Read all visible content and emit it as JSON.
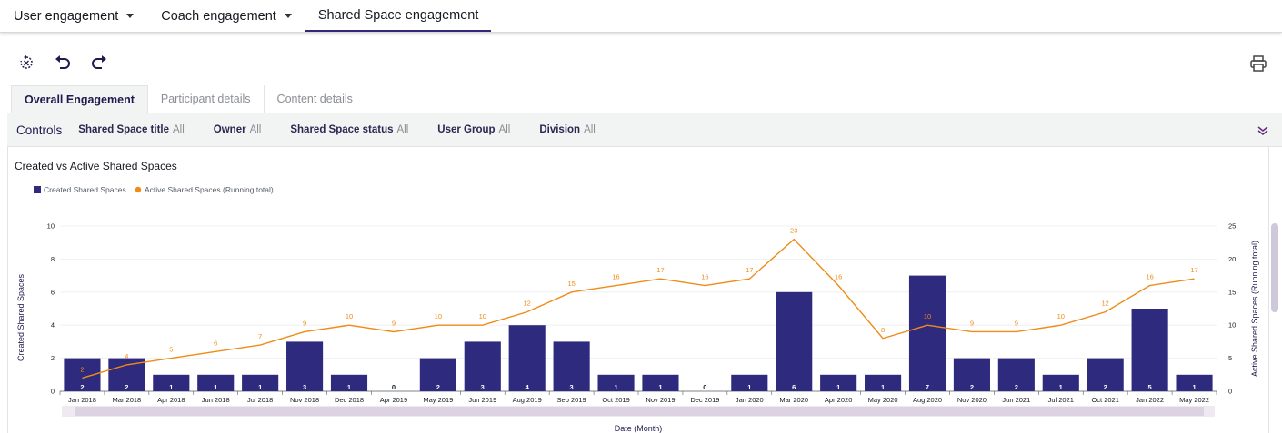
{
  "topnav": {
    "tabs": [
      {
        "label": "User engagement",
        "dropdown": true,
        "active": false
      },
      {
        "label": "Coach engagement",
        "dropdown": true,
        "active": false
      },
      {
        "label": "Shared Space engagement",
        "dropdown": false,
        "active": true
      }
    ]
  },
  "toolbar": {
    "icons": [
      "reset-icon",
      "undo-icon",
      "redo-icon",
      "print-icon"
    ]
  },
  "subtabs": [
    {
      "label": "Overall Engagement",
      "active": true
    },
    {
      "label": "Participant details",
      "active": false
    },
    {
      "label": "Content details",
      "active": false
    }
  ],
  "controls": {
    "title": "Controls",
    "filters": [
      {
        "name": "Shared Space title",
        "value": "All"
      },
      {
        "name": "Owner",
        "value": "All"
      },
      {
        "name": "Shared Space status",
        "value": "All"
      },
      {
        "name": "User Group",
        "value": "All"
      },
      {
        "name": "Division",
        "value": "All"
      }
    ]
  },
  "chart_data": {
    "type": "bar",
    "title": "Created vs Active Shared Spaces",
    "categories": [
      "Jan 2018",
      "Mar 2018",
      "Apr 2018",
      "Jun 2018",
      "Jul 2018",
      "Nov 2018",
      "Dec 2018",
      "Apr 2019",
      "May 2019",
      "Jun 2019",
      "Aug 2019",
      "Sep 2019",
      "Oct 2019",
      "Nov 2019",
      "Dec 2019",
      "Jan 2020",
      "Mar 2020",
      "Apr 2020",
      "May 2020",
      "Aug 2020",
      "Nov 2020",
      "Jun 2021",
      "Jul 2021",
      "Oct 2021",
      "Jan 2022",
      "May 2022"
    ],
    "series": [
      {
        "name": "Created Shared Spaces",
        "type": "bar",
        "axis": "left",
        "color": "#2e2a7e",
        "values": [
          2,
          2,
          1,
          1,
          1,
          3,
          1,
          0,
          2,
          3,
          4,
          3,
          1,
          1,
          0,
          1,
          6,
          1,
          1,
          7,
          2,
          2,
          1,
          2,
          5,
          1
        ]
      },
      {
        "name": "Active Shared Spaces (Running total)",
        "type": "line",
        "axis": "right",
        "color": "#ef8b17",
        "values": [
          2,
          4,
          5,
          6,
          7,
          9,
          10,
          9,
          10,
          10,
          12,
          15,
          16,
          17,
          16,
          17,
          23,
          16,
          8,
          10,
          9,
          9,
          10,
          12,
          16,
          17
        ]
      }
    ],
    "xlabel": "Date (Month)",
    "ylabel": "Created Shared Spaces",
    "y2label": "Active Shared Spaces (Running total)",
    "ylim": [
      0,
      10
    ],
    "yticks": [
      0,
      2,
      4,
      6,
      8,
      10
    ],
    "y2lim": [
      0,
      25
    ],
    "y2ticks": [
      0,
      5,
      10,
      15,
      20,
      25
    ],
    "legend_position": "top-left",
    "grid": true
  }
}
